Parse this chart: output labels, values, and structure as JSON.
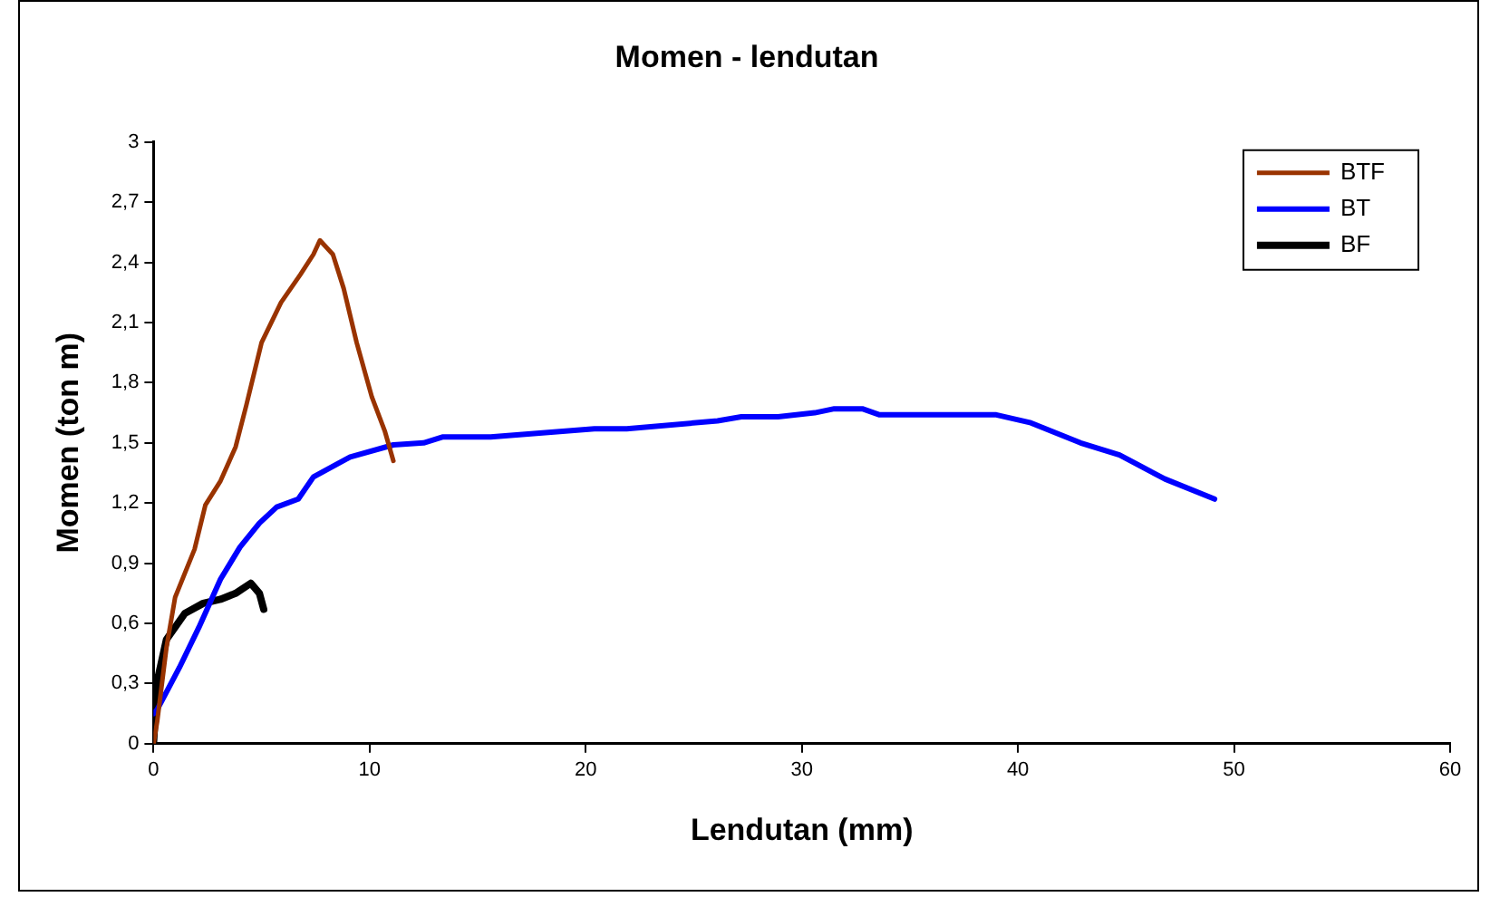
{
  "chart_data": {
    "type": "line",
    "title": "Momen - lendutan",
    "xlabel": "Lendutan (mm)",
    "ylabel": "Momen (ton m)",
    "xlim": [
      0,
      60
    ],
    "xticks": [
      0,
      10,
      20,
      30,
      40,
      50,
      60
    ],
    "ylim": [
      0,
      3
    ],
    "yticks": [
      0,
      {
        "value": 0.3,
        "label": "0,3"
      },
      {
        "value": 0.6,
        "label": "0,6"
      },
      {
        "value": 0.9,
        "label": "0,9"
      },
      {
        "value": 1.2,
        "label": "1,2"
      },
      {
        "value": 1.5,
        "label": "1,5"
      },
      {
        "value": 1.8,
        "label": "1,8"
      },
      {
        "value": 2.1,
        "label": "2,1"
      },
      {
        "value": 2.4,
        "label": "2,4"
      },
      {
        "value": 2.7,
        "label": "2,7"
      },
      3
    ],
    "grid": false,
    "legend": "top right",
    "marker": "none",
    "line_style": "solid",
    "series": [
      {
        "name": "BTF",
        "color": "#993300",
        "x": [
          0,
          0.17,
          0.6,
          1.0,
          1.9,
          2.4,
          3.1,
          3.8,
          4.3,
          5.0,
          5.9,
          6.8,
          7.4,
          7.7,
          8.3,
          8.8,
          9.4,
          10.1,
          10.7,
          11.1
        ],
        "values": [
          0,
          0.11,
          0.48,
          0.73,
          0.97,
          1.19,
          1.31,
          1.48,
          1.69,
          2.0,
          2.2,
          2.34,
          2.44,
          2.51,
          2.44,
          2.27,
          2.0,
          1.73,
          1.56,
          1.41
        ]
      },
      {
        "name": "BT",
        "color": "#0000ff",
        "x": [
          0,
          0.17,
          1.2,
          2.1,
          3.1,
          4.0,
          4.9,
          5.7,
          6.7,
          7.4,
          9.1,
          11.1,
          12.5,
          13.4,
          15.6,
          20.4,
          21.9,
          26.1,
          27.2,
          28.9,
          30.6,
          31.5,
          32.8,
          33.6,
          36.3,
          39.0,
          40.6,
          42.9,
          44.7,
          46.8,
          49.1
        ],
        "values": [
          0.15,
          0.17,
          0.38,
          0.58,
          0.82,
          0.98,
          1.1,
          1.18,
          1.22,
          1.33,
          1.43,
          1.49,
          1.5,
          1.53,
          1.53,
          1.57,
          1.57,
          1.61,
          1.63,
          1.63,
          1.65,
          1.67,
          1.67,
          1.64,
          1.64,
          1.64,
          1.6,
          1.5,
          1.44,
          1.32,
          1.22
        ]
      },
      {
        "name": "BF",
        "color": "#000000",
        "x": [
          0,
          0.17,
          0.6,
          1.45,
          2.3,
          3.1,
          3.8,
          4.5,
          4.9,
          5.1
        ],
        "values": [
          0,
          0.31,
          0.52,
          0.65,
          0.7,
          0.72,
          0.75,
          0.8,
          0.75,
          0.67
        ]
      }
    ]
  }
}
